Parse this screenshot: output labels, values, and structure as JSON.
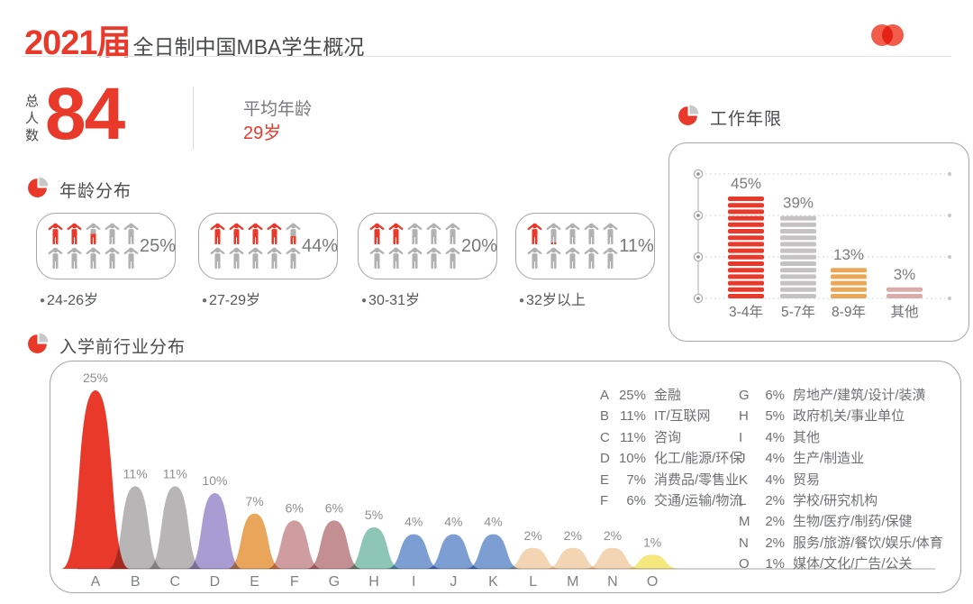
{
  "header": {
    "title_year": "2021届",
    "title_rest": "全日制中国MBA学生概况",
    "logo_icon": "overlapping-circles-logo"
  },
  "summary": {
    "total_label": "总人数",
    "total_value": "84",
    "avg_age_label": "平均年龄",
    "avg_age_value": "29岁"
  },
  "colors": {
    "accent_red": "#e8392b",
    "text_dark": "#4a4b4d",
    "text_gray": "#77787b",
    "legend_gray": "#6f7073",
    "border_gray": "#a5a5a5",
    "icon_gray": "#b2b1b1"
  },
  "chart_data": [
    {
      "type": "pictogram",
      "title": "年龄分布",
      "section_icon": "pie-chart-icon",
      "categories": [
        "24-26岁",
        "27-29岁",
        "30-31岁",
        "32岁以上"
      ],
      "values": [
        25,
        44,
        20,
        11
      ],
      "value_labels": [
        "25%",
        "44%",
        "20%",
        "11%"
      ],
      "icons_per_group": 10,
      "icon": "person-arms-up-icon",
      "icon_fill": [
        {
          "full": 2,
          "partial": 0.5
        },
        {
          "full": 4,
          "partial": 0.4
        },
        {
          "full": 2,
          "partial": 0
        },
        {
          "full": 1,
          "partial": 0.1
        }
      ],
      "fill_color": "#e8392b",
      "empty_color": "#b2b1b1"
    },
    {
      "type": "bar",
      "title": "工作年限",
      "section_icon": "pie-chart-icon",
      "categories": [
        "3-4年",
        "5-7年",
        "8-9年",
        "其他"
      ],
      "values": [
        45,
        39,
        13,
        3
      ],
      "value_labels": [
        "45%",
        "39%",
        "13%",
        "3%"
      ],
      "bar_colors": [
        "#e8392b",
        "#c4c2c2",
        "#eba757",
        "#d9abab"
      ],
      "style": "striped-stack-bars",
      "grid": "dotted-horizontal, 4 levels with axis ring markers",
      "ylim": [
        0,
        50
      ]
    },
    {
      "type": "area",
      "title": "入学前行业分布",
      "section_icon": "pie-chart-icon",
      "shape": "overlapping bell curves on a baseline",
      "categories": [
        "A",
        "B",
        "C",
        "D",
        "E",
        "F",
        "G",
        "H",
        "I",
        "J",
        "K",
        "L",
        "M",
        "N",
        "O"
      ],
      "values": [
        25,
        11,
        11,
        10,
        7,
        6,
        6,
        5,
        4,
        4,
        4,
        2,
        2,
        2,
        1
      ],
      "value_labels": [
        "25%",
        "11%",
        "11%",
        "10%",
        "7%",
        "6%",
        "6%",
        "5%",
        "4%",
        "4%",
        "4%",
        "2%",
        "2%",
        "2%",
        "1%"
      ],
      "names": [
        "金融",
        "IT/互联网",
        "咨询",
        "化工/能源/环保",
        "消费品/零售业",
        "交通/运输/物流",
        "房地产/建筑/设计/装潢",
        "政府机关/事业单位",
        "其他",
        "生产/制造业",
        "贸易",
        "学校/研究机构",
        "生物/医疗/制药/保健",
        "服务/旅游/餐饮/娱乐/体育",
        "媒体/文化/广告/公关"
      ],
      "colors": [
        "#e8392b",
        "#b7b5b5",
        "#b7b5b5",
        "#a99cd2",
        "#e9a55a",
        "#cf9da0",
        "#c38f93",
        "#8ec6b5",
        "#7c9ed3",
        "#7c9ed3",
        "#7c9ed3",
        "#f3d5b3",
        "#f3d5b3",
        "#f3d5b3",
        "#f5e87e"
      ],
      "legend_position": "top-right, two columns (A-F, G-O)"
    }
  ]
}
